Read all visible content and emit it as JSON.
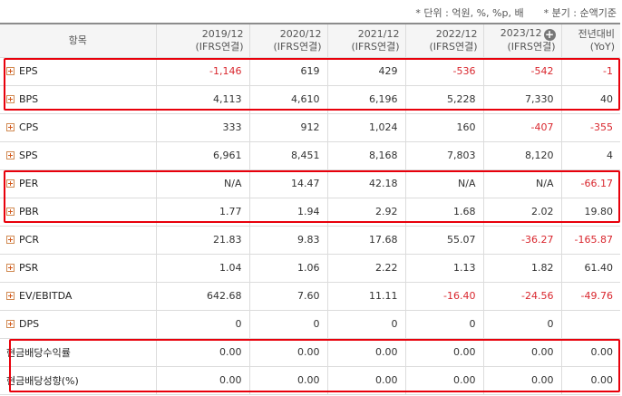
{
  "notes": {
    "unit": "* 단위 : 억원, %, %p, 배",
    "period": "* 분기 : 순액기준"
  },
  "header": {
    "item": "항목",
    "columns": [
      {
        "year": "2019/12",
        "basis": "(IFRS연결)"
      },
      {
        "year": "2020/12",
        "basis": "(IFRS연결)"
      },
      {
        "year": "2021/12",
        "basis": "(IFRS연결)"
      },
      {
        "year": "2022/12",
        "basis": "(IFRS연결)"
      },
      {
        "year": "2023/12",
        "basis": "(IFRS연결)"
      },
      {
        "year": "전년대비",
        "basis": "(YoY)"
      }
    ]
  },
  "rows": [
    {
      "label": "EPS",
      "values": [
        "-1,146",
        "619",
        "429",
        "-536",
        "-542",
        "-1"
      ]
    },
    {
      "label": "BPS",
      "values": [
        "4,113",
        "4,610",
        "6,196",
        "5,228",
        "7,330",
        "40"
      ]
    },
    {
      "label": "CPS",
      "values": [
        "333",
        "912",
        "1,024",
        "160",
        "-407",
        "-355"
      ]
    },
    {
      "label": "SPS",
      "values": [
        "6,961",
        "8,451",
        "8,168",
        "7,803",
        "8,120",
        "4"
      ]
    },
    {
      "label": "PER",
      "values": [
        "N/A",
        "14.47",
        "42.18",
        "N/A",
        "N/A",
        "-66.17"
      ]
    },
    {
      "label": "PBR",
      "values": [
        "1.77",
        "1.94",
        "2.92",
        "1.68",
        "2.02",
        "19.80"
      ]
    },
    {
      "label": "PCR",
      "values": [
        "21.83",
        "9.83",
        "17.68",
        "55.07",
        "-36.27",
        "-165.87"
      ]
    },
    {
      "label": "PSR",
      "values": [
        "1.04",
        "1.06",
        "2.22",
        "1.13",
        "1.82",
        "61.40"
      ]
    },
    {
      "label": "EV/EBITDA",
      "values": [
        "642.68",
        "7.60",
        "11.11",
        "-16.40",
        "-24.56",
        "-49.76"
      ]
    },
    {
      "label": "DPS",
      "values": [
        "0",
        "0",
        "0",
        "0",
        "0",
        ""
      ]
    },
    {
      "label": "현금배당수익률",
      "values": [
        "0.00",
        "0.00",
        "0.00",
        "0.00",
        "0.00",
        "0.00"
      ]
    },
    {
      "label": "현금배당성향(%)",
      "values": [
        "0.00",
        "0.00",
        "0.00",
        "0.00",
        "0.00",
        "0.00"
      ]
    }
  ],
  "colors": {
    "negative": "#d9272e",
    "highlight": "#e8000b",
    "expand_icon": "#d25a1e"
  },
  "icons": {
    "expand": "plus-square-icon",
    "add_column": "circle-plus-icon"
  }
}
